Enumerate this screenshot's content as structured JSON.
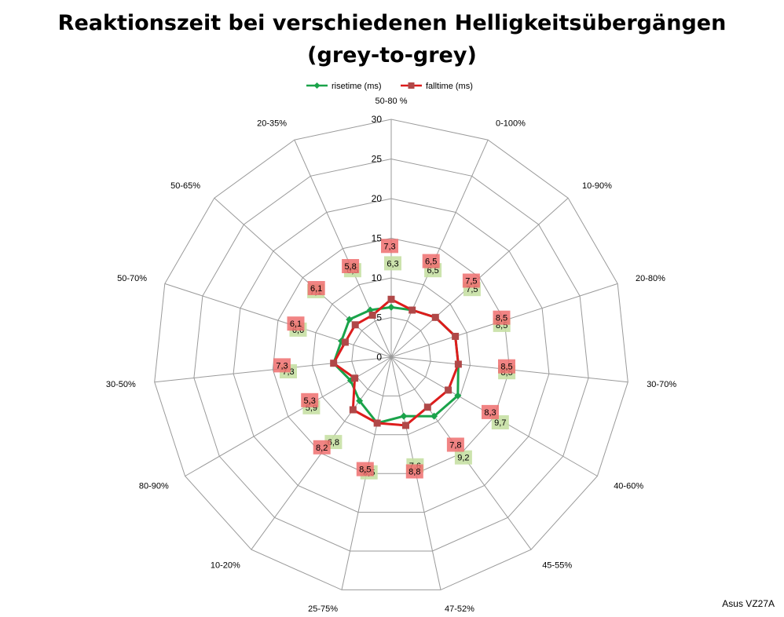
{
  "chart_data": {
    "type": "radar",
    "title_line1": "Reaktionszeit bei verschiedenen Helligkeitsübergängen",
    "title_line2": "(grey-to-grey)",
    "categories": [
      "50-80 %",
      "0-100%",
      "10-90%",
      "20-80%",
      "30-70%",
      "40-60%",
      "45-55%",
      "47-52%",
      "25-75%",
      "10-20%",
      "80-90%",
      "30-50%",
      "50-70%",
      "50-65%",
      "20-35%"
    ],
    "ticks": [
      "0",
      "5",
      "10",
      "15",
      "20",
      "25",
      "30"
    ],
    "rmax": 30,
    "legend_position": "top",
    "series": [
      {
        "name": "risetime (ms)",
        "color": "#1aa34a",
        "label_bg": "#c6e0a4",
        "marker": "diamond",
        "values": [
          6.3,
          6.5,
          7.5,
          8.5,
          8.5,
          9.7,
          9.2,
          7.6,
          8.5,
          6.8,
          5.9,
          7.3,
          6.6,
          7.1,
          6.5
        ],
        "labels": [
          "6,3",
          "6,5",
          "7,5",
          "8,5",
          "8,5",
          "9,7",
          "9,2",
          "7,6",
          "8,5",
          "6,8",
          "5,9",
          "7,3",
          "6,6",
          "7,1",
          "6,5"
        ]
      },
      {
        "name": "falltime (ms)",
        "color": "#dd1c1c",
        "label_bg": "#ef6f6f",
        "marker": "square",
        "values": [
          7.3,
          6.5,
          7.5,
          8.5,
          8.5,
          8.3,
          7.8,
          8.8,
          8.5,
          8.2,
          5.3,
          7.3,
          6.1,
          6.1,
          5.8
        ],
        "labels": [
          "7,3",
          "6,5",
          "7,5",
          "8,5",
          "8,5",
          "8,3",
          "7,8",
          "8,8",
          "8,5",
          "8,2",
          "5,3",
          "7,3",
          "6,1",
          "6,1",
          "5,8"
        ]
      }
    ],
    "footer": "Asus VZ27A"
  }
}
